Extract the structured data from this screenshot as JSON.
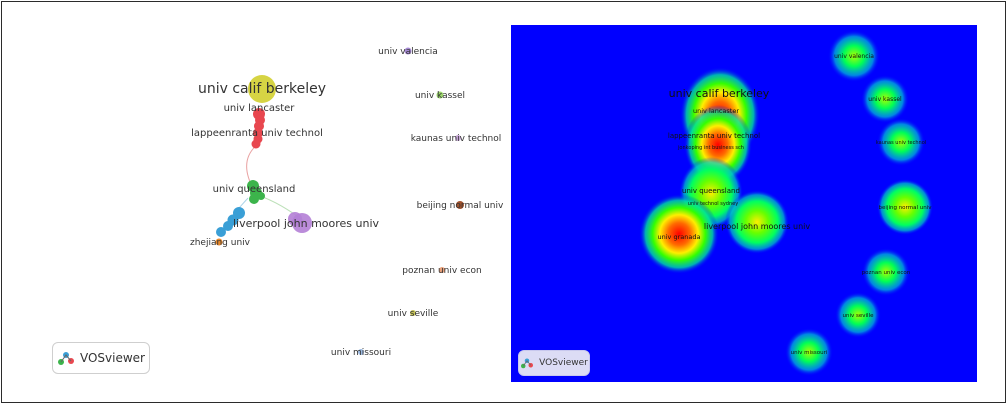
{
  "left_map": {
    "labels": {
      "univ_calif_berkeley": "univ calif berkeley",
      "univ_lancaster": "univ lancaster",
      "lappeenranta_univ_technol": "lappeenranta univ technol",
      "univ_queensland": "univ queensland",
      "liverpool_john_moores_univ": "liverpool john moores univ",
      "zhejiang_univ": "zhejiang univ",
      "univ_valencia": "univ valencia",
      "univ_kassel": "univ kassel",
      "kaunas_univ_technol": "kaunas univ technol",
      "beijing_normal_univ": "beijing normal univ",
      "poznan_univ_econ": "poznan univ econ",
      "univ_seville": "univ seville",
      "univ_missouri": "univ missouri"
    },
    "logo_text": "VOSviewer"
  },
  "right_map": {
    "labels": {
      "univ_calif_berkeley": "univ calif berkeley",
      "univ_lancaster": "univ lancaster",
      "lappeenranta_univ_technol": "lappeenranta univ technol",
      "jonkoping_int_business_sch": "jonkoping int business sch",
      "univ_queensland": "univ queensland",
      "univ_technol_sydney": "univ technol sydney",
      "liverpool_john_moores_univ": "liverpool john moores univ",
      "univ_granada": "univ granada",
      "univ_valencia": "univ valencia",
      "univ_kassel": "univ kassel",
      "kaunas_univ_technol": "kaunas univ technol",
      "beijing_normal_univ": "beijing normal univ",
      "poznan_univ_econ": "poznan univ econ",
      "univ_seville": "univ seville",
      "univ_missouri": "univ missouri"
    },
    "logo_text": "VOSviewer"
  },
  "colors": {
    "berkeley": "#d4d23a",
    "red_cluster": "#e8474f",
    "green_cluster": "#3cb44b",
    "blue_cluster": "#3a9fd6",
    "purple_cluster": "#b47fd6",
    "orange": "#e8892d",
    "density_bg": "#0000ff"
  }
}
